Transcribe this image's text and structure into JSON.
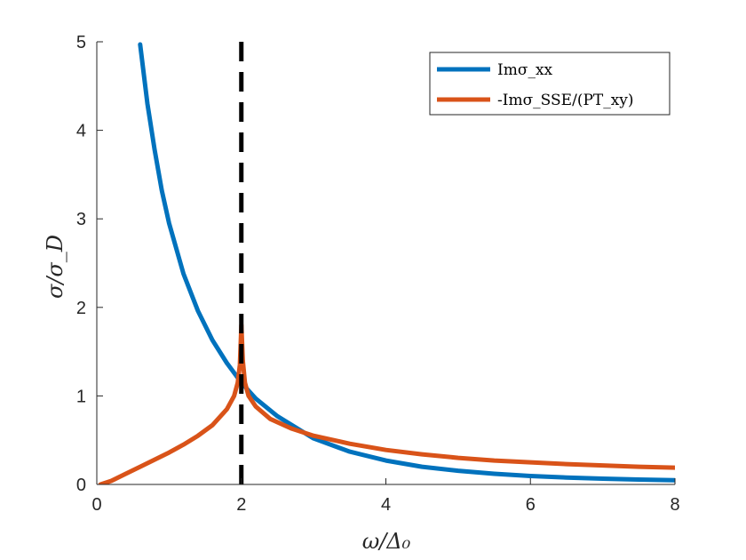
{
  "chart_data": {
    "type": "line",
    "xlabel": "ω/Δ₀",
    "ylabel": "σ/σ_D",
    "xlim": [
      0,
      8
    ],
    "ylim": [
      0,
      5
    ],
    "xticks": [
      0,
      2,
      4,
      6,
      8
    ],
    "yticks": [
      0,
      1,
      2,
      3,
      4,
      5
    ],
    "xtick_labels": [
      "0",
      "2",
      "4",
      "6",
      "8"
    ],
    "ytick_labels": [
      "0",
      "1",
      "2",
      "3",
      "4",
      "5"
    ],
    "grid": false,
    "legend_position": "top-right",
    "series": [
      {
        "name": "Imσ_xx",
        "color": "#0072BD",
        "x": [
          0.6,
          0.7,
          0.8,
          0.9,
          1.0,
          1.2,
          1.4,
          1.6,
          1.8,
          2.0,
          2.2,
          2.5,
          3.0,
          3.5,
          4.0,
          4.5,
          5.0,
          5.5,
          6.0,
          6.5,
          7.0,
          7.5,
          8.0
        ],
        "y": [
          4.97,
          4.3,
          3.78,
          3.32,
          2.95,
          2.38,
          1.96,
          1.63,
          1.37,
          1.15,
          0.97,
          0.77,
          0.52,
          0.37,
          0.27,
          0.2,
          0.155,
          0.12,
          0.095,
          0.078,
          0.065,
          0.055,
          0.048
        ]
      },
      {
        "name": "-Imσ_SSE/(PT_xy)",
        "color": "#D95319",
        "x": [
          0.05,
          0.2,
          0.4,
          0.6,
          0.8,
          1.0,
          1.2,
          1.4,
          1.6,
          1.8,
          1.9,
          1.95,
          1.98,
          2.0,
          2.02,
          2.05,
          2.1,
          2.2,
          2.4,
          2.7,
          3.0,
          3.5,
          4.0,
          4.5,
          5.0,
          5.5,
          6.0,
          6.5,
          7.0,
          7.5,
          8.0
        ],
        "y": [
          0.0,
          0.04,
          0.12,
          0.2,
          0.28,
          0.36,
          0.45,
          0.55,
          0.67,
          0.85,
          1.0,
          1.15,
          1.35,
          1.8,
          1.4,
          1.15,
          1.0,
          0.88,
          0.74,
          0.63,
          0.55,
          0.46,
          0.39,
          0.34,
          0.3,
          0.27,
          0.25,
          0.23,
          0.215,
          0.2,
          0.19
        ]
      }
    ],
    "annotations": [
      {
        "type": "vertical-dashed-line",
        "x": 2,
        "color": "#000000"
      }
    ]
  }
}
